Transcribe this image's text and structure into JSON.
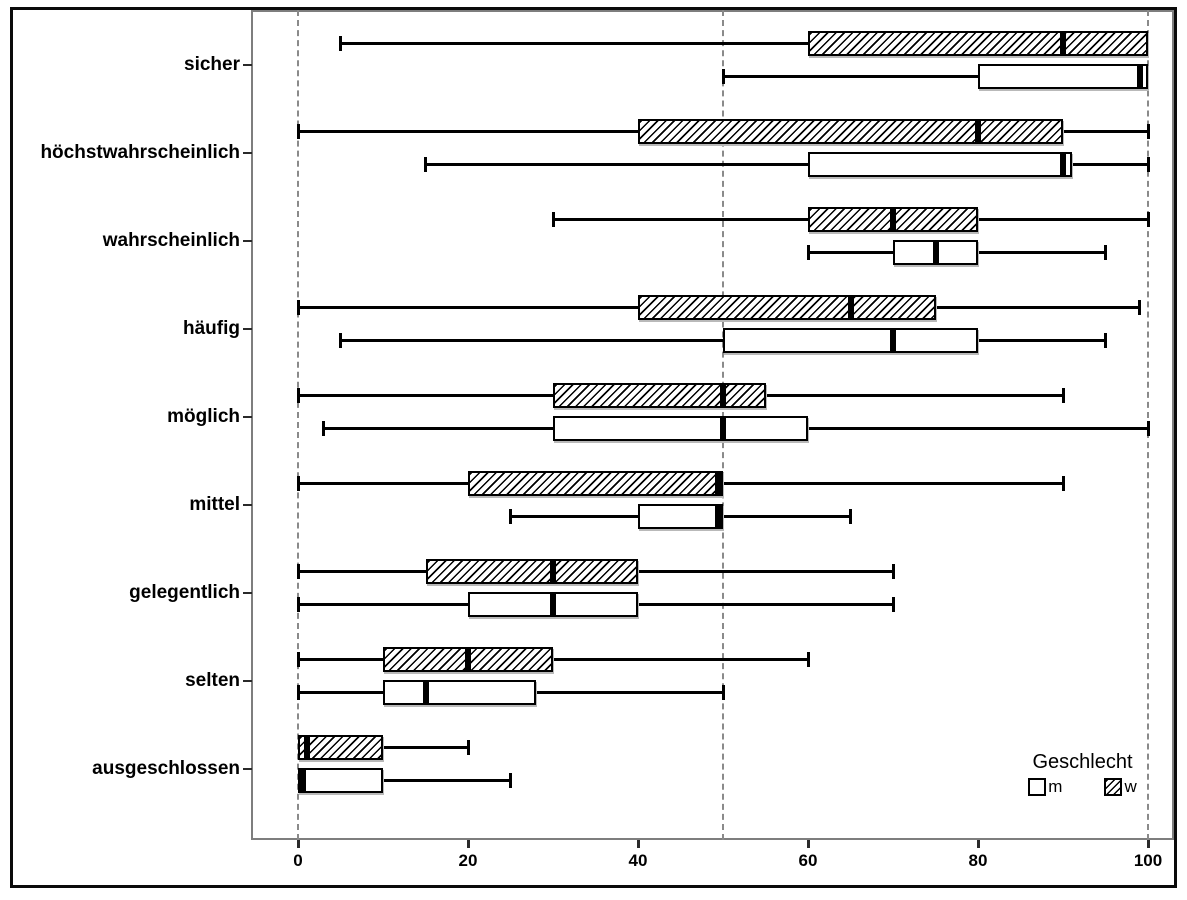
{
  "figure": {
    "background": "#ffffff",
    "frame_color": "#7e7e7e",
    "border_color": "#0a0a0a",
    "ink_color": "#000000"
  },
  "chart_data": {
    "type": "boxplot",
    "orientation": "horizontal",
    "title": "",
    "xlabel": "",
    "ylabel": "",
    "xlim": [
      0,
      100
    ],
    "x_ticks": [
      0,
      20,
      40,
      60,
      80,
      100
    ],
    "reference_lines_x": [
      0,
      50,
      100
    ],
    "grid": "dashed-vertical-reference-lines",
    "legend_position": "inside-bottom-right",
    "legend": {
      "title": "Geschlecht",
      "items": [
        {
          "label": "m",
          "style": "white"
        },
        {
          "label": "w",
          "style": "hatched"
        }
      ]
    },
    "categories": [
      "sicher",
      "höchstwahrscheinlich",
      "wahrscheinlich",
      "häufig",
      "möglich",
      "mittel",
      "gelegentlich",
      "selten",
      "ausgeschlossen"
    ],
    "series": [
      {
        "name": "m",
        "style": "white",
        "row": "bottom",
        "boxes": [
          {
            "min": 50,
            "q1": 80,
            "median": 99,
            "q3": 100,
            "max": 100
          },
          {
            "min": 15,
            "q1": 60,
            "median": 90,
            "q3": 91,
            "max": 100
          },
          {
            "min": 60,
            "q1": 70,
            "median": 75,
            "q3": 80,
            "max": 95
          },
          {
            "min": 5,
            "q1": 50,
            "median": 70,
            "q3": 80,
            "max": 95
          },
          {
            "min": 3,
            "q1": 30,
            "median": 50,
            "q3": 60,
            "max": 100
          },
          {
            "min": 25,
            "q1": 40,
            "median": 50,
            "q3": 50,
            "max": 65
          },
          {
            "min": 0,
            "q1": 20,
            "median": 30,
            "q3": 40,
            "max": 70
          },
          {
            "min": 0,
            "q1": 10,
            "median": 15,
            "q3": 28,
            "max": 50
          },
          {
            "min": 0,
            "q1": 0,
            "median": 0,
            "q3": 10,
            "max": 25
          }
        ]
      },
      {
        "name": "w",
        "style": "hatched",
        "row": "top",
        "boxes": [
          {
            "min": 5,
            "q1": 60,
            "median": 90,
            "q3": 100,
            "max": 100
          },
          {
            "min": 0,
            "q1": 40,
            "median": 80,
            "q3": 90,
            "max": 100
          },
          {
            "min": 30,
            "q1": 60,
            "median": 70,
            "q3": 80,
            "max": 100
          },
          {
            "min": 0,
            "q1": 40,
            "median": 65,
            "q3": 75,
            "max": 99
          },
          {
            "min": 0,
            "q1": 30,
            "median": 50,
            "q3": 55,
            "max": 90
          },
          {
            "min": 0,
            "q1": 20,
            "median": 50,
            "q3": 50,
            "max": 90
          },
          {
            "min": 0,
            "q1": 15,
            "median": 30,
            "q3": 40,
            "max": 70
          },
          {
            "min": 0,
            "q1": 10,
            "median": 20,
            "q3": 30,
            "max": 60
          },
          {
            "min": 0,
            "q1": 0,
            "median": 1,
            "q3": 10,
            "max": 20
          }
        ]
      }
    ]
  }
}
